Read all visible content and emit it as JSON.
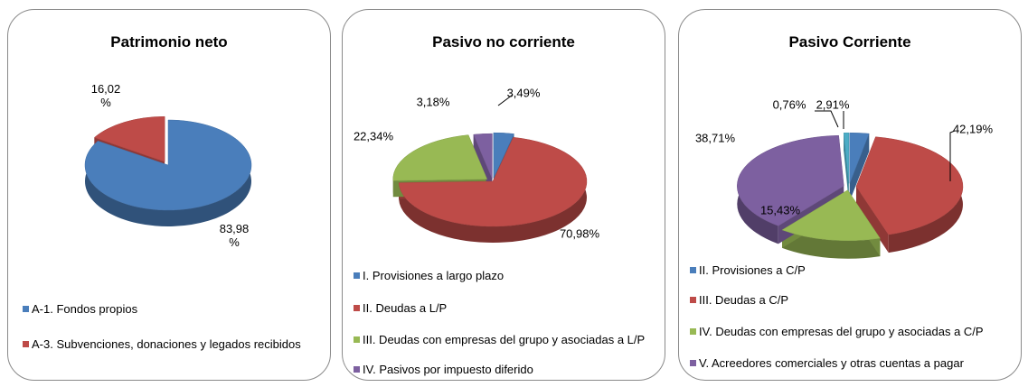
{
  "chart_data": [
    {
      "type": "pie",
      "title": "Patrimonio neto",
      "categories": [
        "A-1. Fondos propios",
        "A-3. Subvenciones, donaciones y legados recibidos"
      ],
      "values": [
        83.98,
        16.02
      ],
      "value_labels": [
        "83,98 %",
        "16,02 %"
      ],
      "colors": [
        "#4a7ebb",
        "#be4b48"
      ]
    },
    {
      "type": "pie",
      "title": "Pasivo no corriente",
      "categories": [
        "I. Provisiones a largo plazo",
        "II. Deudas a L/P",
        "III. Deudas con empresas del grupo y asociadas a L/P",
        "IV. Pasivos por impuesto diferido"
      ],
      "values": [
        3.49,
        70.98,
        22.34,
        3.18
      ],
      "value_labels": [
        "3,49%",
        "70,98%",
        "22,34%",
        "3,18%"
      ],
      "colors": [
        "#4a7ebb",
        "#be4b48",
        "#98b954",
        "#7d60a0"
      ]
    },
    {
      "type": "pie",
      "title": "Pasivo Corriente",
      "categories": [
        "II. Provisiones a C/P",
        "III. Deudas a C/P",
        "IV. Deudas con empresas del grupo y asociadas a C/P",
        "V. Acreedores comerciales y otras cuentas a pagar",
        null
      ],
      "values": [
        2.91,
        42.19,
        15.43,
        38.71,
        0.76
      ],
      "value_labels": [
        "2,91%",
        "42,19%",
        "15,43%",
        "38,71%",
        "0,76%"
      ],
      "colors": [
        "#4a7ebb",
        "#be4b48",
        "#98b954",
        "#7d60a0",
        "#4bacc6"
      ]
    }
  ]
}
